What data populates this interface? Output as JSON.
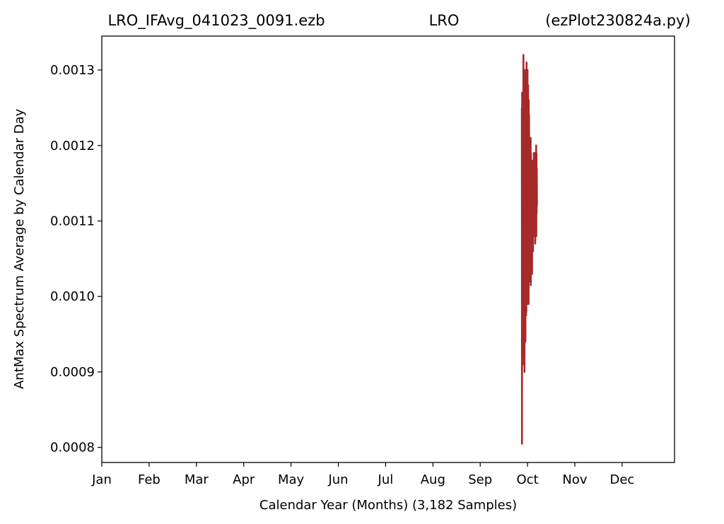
{
  "chart_data": {
    "type": "line",
    "title_parts": [
      "LRO_IFAvg_041023_0091.ezb",
      "LRO",
      "(ezPlot230824a.py)"
    ],
    "xlabel": "Calendar Year (Months) (3,182 Samples)",
    "ylabel": "AntMax Spectrum Average by Calendar Day",
    "x_ticks": [
      "Jan",
      "Feb",
      "Mar",
      "Apr",
      "May",
      "Jun",
      "Jul",
      "Aug",
      "Sep",
      "Oct",
      "Nov",
      "Dec"
    ],
    "y_ticks": [
      "0.0008",
      "0.0009",
      "0.0010",
      "0.0011",
      "0.0012",
      "0.0013"
    ],
    "ylim": [
      0.00078,
      0.001345
    ],
    "grid": false,
    "series": [
      {
        "color": "#a52a2a",
        "x_unit": "month",
        "x": [
          8.88,
          8.883,
          8.886,
          8.89,
          8.893,
          8.896,
          8.9,
          8.903,
          8.906,
          8.91,
          8.913,
          8.916,
          8.92,
          8.923,
          8.926,
          8.93,
          8.933,
          8.936,
          8.94,
          8.943,
          8.946,
          8.95,
          8.953,
          8.956,
          8.96,
          8.963,
          8.966,
          8.97,
          8.973,
          8.976,
          8.98,
          8.983,
          8.986,
          8.99,
          8.993,
          8.996,
          9.0,
          9.003,
          9.006,
          9.01,
          9.013,
          9.016,
          9.02,
          9.023,
          9.026,
          9.03,
          9.033,
          9.036,
          9.04,
          9.043,
          9.046,
          9.05,
          9.053,
          9.056,
          9.06,
          9.063,
          9.066,
          9.07,
          9.073,
          9.076,
          9.08,
          9.083,
          9.086,
          9.09,
          9.093,
          9.096,
          9.1,
          9.103,
          9.106,
          9.11,
          9.113,
          9.116,
          9.12,
          9.123,
          9.126,
          9.13,
          9.133,
          9.136,
          9.14,
          9.143,
          9.146,
          9.15,
          9.153,
          9.156,
          9.16,
          9.163,
          9.166,
          9.17,
          9.173,
          9.176,
          9.18,
          9.183,
          9.186,
          9.19,
          9.193,
          9.196,
          9.2
        ],
        "values": [
          0.00125,
          0.000805,
          0.00127,
          0.00095,
          0.00126,
          0.00091,
          0.00124,
          0.001,
          0.00126,
          0.00096,
          0.00132,
          0.00098,
          0.0013,
          0.00092,
          0.00125,
          0.00108,
          0.00128,
          0.0009,
          0.00122,
          0.00099,
          0.00127,
          0.00096,
          0.0013,
          0.00094,
          0.00124,
          0.00105,
          0.00129,
          0.000975,
          0.00126,
          0.00098,
          0.00131,
          0.00106,
          0.00123,
          0.00099,
          0.00125,
          0.00104,
          0.0013,
          0.00102,
          0.00122,
          0.00105,
          0.00128,
          0.00107,
          0.00121,
          0.00099,
          0.00126,
          0.00102,
          0.00124,
          0.00108,
          0.00119,
          0.00103,
          0.0012,
          0.00107,
          0.00118,
          0.00102,
          0.00117,
          0.00106,
          0.00121,
          0.001015,
          0.00119,
          0.00108,
          0.00116,
          0.00109,
          0.00118,
          0.00106,
          0.00115,
          0.00103,
          0.00118,
          0.00107,
          0.00114,
          0.00109,
          0.00118,
          0.00106,
          0.00117,
          0.0011,
          0.00116,
          0.00108,
          0.00119,
          0.00111,
          0.00118,
          0.00109,
          0.00115,
          0.00112,
          0.00119,
          0.00108,
          0.00117,
          0.00107,
          0.00118,
          0.00111,
          0.00119,
          0.00109,
          0.00116,
          0.0012,
          0.00108,
          0.00119,
          0.00111,
          0.00117,
          0.00112
        ]
      }
    ]
  }
}
